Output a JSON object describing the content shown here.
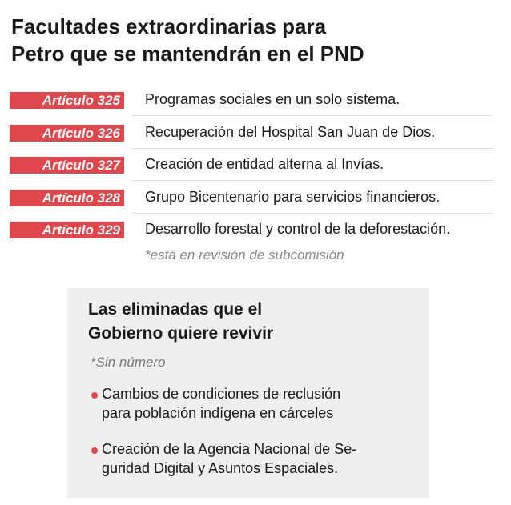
{
  "header": {
    "title_lines": [
      "Facultades extraordinarias para",
      "Petro que se mantendrán en el PND"
    ]
  },
  "articles": [
    {
      "label": "Artículo 325",
      "text": "Programas sociales en un solo sistema."
    },
    {
      "label": "Artículo 326",
      "text": "Recuperación del Hospital San Juan de Dios."
    },
    {
      "label": "Artículo 327",
      "text": "Creación de entidad alterna al Invías."
    },
    {
      "label": "Artículo 328",
      "text": "Grupo Bicentenario para servicios financieros."
    },
    {
      "label": "Artículo 329",
      "text": "Desarrollo forestal y control de la deforestación."
    }
  ],
  "note": "*está en revisión de subcomisión",
  "box": {
    "title_lines": [
      "Las eliminadas que el",
      "Gobierno quiere revivir"
    ],
    "subtitle": "*Sin número",
    "bullets": [
      {
        "lines": [
          "Cambios de condiciones de reclusión",
          "para población indígena en cárceles"
        ]
      },
      {
        "lines": [
          "Creación de la Agencia Nacional de Se-",
          "guridad Digital y Asuntos Espaciales."
        ]
      }
    ]
  }
}
